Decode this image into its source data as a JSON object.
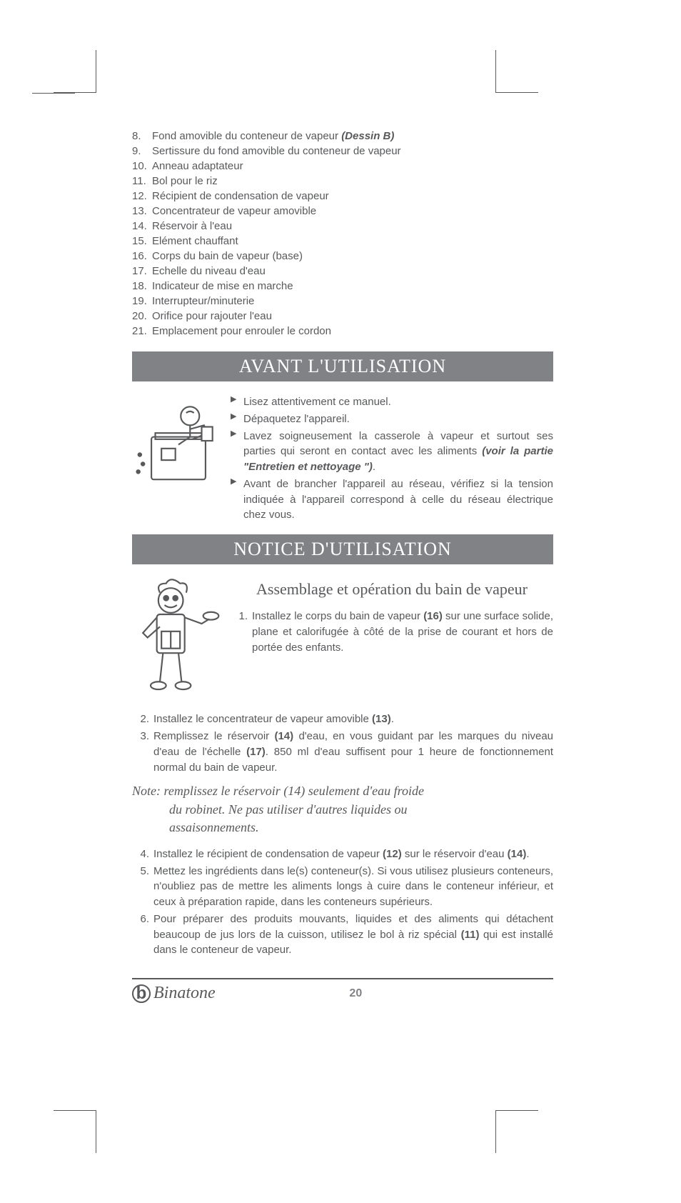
{
  "parts": [
    {
      "n": "8.",
      "text": "Fond amovible du conteneur de vapeur ",
      "bold": "(Dessin B)"
    },
    {
      "n": "9.",
      "text": "Sertissure du fond amovible du conteneur de vapeur"
    },
    {
      "n": "10.",
      "text": "Anneau adaptateur"
    },
    {
      "n": "11.",
      "text": "Bol pour le riz"
    },
    {
      "n": "12.",
      "text": "Récipient de condensation de vapeur"
    },
    {
      "n": "13.",
      "text": "Concentrateur de vapeur amovible"
    },
    {
      "n": "14.",
      "text": "Réservoir à l'eau"
    },
    {
      "n": "15.",
      "text": "Elément chauffant"
    },
    {
      "n": "16.",
      "text": "Corps du bain de vapeur (base)"
    },
    {
      "n": "17.",
      "text": "Echelle du niveau d'eau"
    },
    {
      "n": "18.",
      "text": "Indicateur de mise en marche"
    },
    {
      "n": "19.",
      "text": "Interrupteur/minuterie"
    },
    {
      "n": "20.",
      "text": "Orifice pour rajouter l'eau"
    },
    {
      "n": "21.",
      "text": "Emplacement pour enrouler le cordon"
    }
  ],
  "banner1": "AVANT L'UTILISATION",
  "bullets1": [
    {
      "pre": "Lisez attentivement ce manuel."
    },
    {
      "pre": "Dépaquetez l'appareil."
    },
    {
      "pre": "Lavez soigneusement la casserole à vapeur et surtout ses parties qui seront en contact avec les aliments ",
      "bold": "(voir la partie \"Entretien et nettoyage \")",
      "post": "."
    },
    {
      "pre": "Avant de brancher l'appareil au réseau, vérifiez si la tension indiquée à l'appareil correspond à celle du réseau électrique chez vous."
    }
  ],
  "banner2": "NOTICE D'UTILISATION",
  "subheading": "Assemblage et opération du bain de vapeur",
  "steps_top": [
    {
      "n": "1.",
      "t": "Installez le corps du bain de vapeur <b>(16)</b> sur une surface solide, plane et calorifugée à côté de la prise de courant et hors de portée des enfants."
    }
  ],
  "steps_mid": [
    {
      "n": "2.",
      "t": "Installez le concentrateur de vapeur amovible <b>(13)</b>."
    },
    {
      "n": "3.",
      "t": "Remplissez le réservoir <b>(14)</b> d'eau, en vous guidant par les marques du niveau d'eau de l'échelle <b>(17)</b>. 850 ml d'eau suffisent pour 1 heure de fonctionnement normal du bain de vapeur."
    }
  ],
  "note_line1": "Note: remplissez le réservoir (14) seulement d'eau froide",
  "note_line2": "du robinet. Ne pas utiliser d'autres liquides ou",
  "note_line3": "assaisonnements.",
  "steps_bottom": [
    {
      "n": "4.",
      "t": "Installez le récipient de condensation de vapeur <b>(12)</b> sur le réservoir d'eau <b>(14)</b>."
    },
    {
      "n": "5.",
      "t": "Mettez les ingrédients dans le(s) conteneur(s). Si vous utilisez plusieurs conteneurs, n'oubliez pas de mettre les aliments longs à cuire dans le conteneur inférieur, et ceux à préparation  rapide, dans les conteneurs supérieurs."
    },
    {
      "n": "6.",
      "t": "Pour préparer des produits mouvants, liquides et des aliments qui détachent beaucoup de jus lors de la cuisson, utilisez le bol à riz spécial <b>(11)</b> qui est installé  dans le conteneur de vapeur."
    }
  ],
  "brand": "Binatone",
  "pageNumber": "20",
  "colors": {
    "text": "#58595b",
    "banner": "#808285",
    "white": "#ffffff"
  }
}
